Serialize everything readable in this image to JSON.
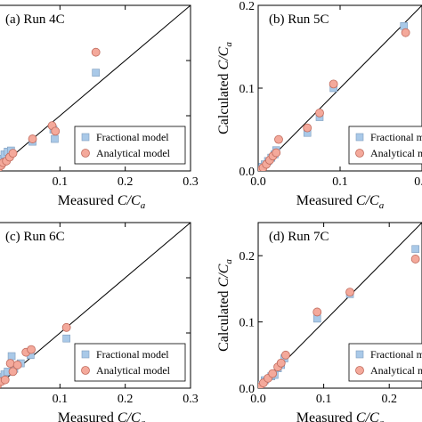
{
  "chart_data": [
    {
      "type": "scatter",
      "panel_label": "(a) Run 4C",
      "xlabel_prefix": "Measured ",
      "xlabel_var": "C/C",
      "xlabel_sub": "a",
      "ylabel_prefix": "",
      "ylabel_var": "",
      "ylabel_sub": "",
      "xlim": [
        0,
        0.3
      ],
      "ylim": [
        0,
        0.3
      ],
      "x_ticks": [
        "0",
        "0.1",
        "0.2",
        "0.3"
      ],
      "y_ticks": [],
      "legend_position": "bottom-right",
      "series": [
        {
          "name": "Fractional model",
          "marker": "square",
          "color": "#a9c9e8",
          "points": [
            [
              0.0,
              0.005
            ],
            [
              0.005,
              0.012
            ],
            [
              0.01,
              0.022
            ],
            [
              0.015,
              0.03
            ],
            [
              0.02,
              0.035
            ],
            [
              0.025,
              0.037
            ],
            [
              0.058,
              0.053
            ],
            [
              0.09,
              0.075
            ],
            [
              0.092,
              0.058
            ],
            [
              0.155,
              0.178
            ]
          ]
        },
        {
          "name": "Analytical model",
          "marker": "circle",
          "color": "#f4a99b",
          "points": [
            [
              0.005,
              0.003
            ],
            [
              0.01,
              0.01
            ],
            [
              0.013,
              0.015
            ],
            [
              0.018,
              0.018
            ],
            [
              0.023,
              0.025
            ],
            [
              0.028,
              0.032
            ],
            [
              0.058,
              0.058
            ],
            [
              0.088,
              0.082
            ],
            [
              0.093,
              0.072
            ],
            [
              0.155,
              0.215
            ]
          ]
        }
      ]
    },
    {
      "type": "scatter",
      "panel_label": "(b) Run 5C",
      "xlabel_prefix": "Measured ",
      "xlabel_var": "C/C",
      "xlabel_sub": "a",
      "ylabel_prefix": "Calculated ",
      "ylabel_var": "C/C",
      "ylabel_sub": "a",
      "xlim": [
        0,
        0.2
      ],
      "ylim": [
        0,
        0.2
      ],
      "x_ticks": [
        "0.0",
        "0.1",
        "0.2"
      ],
      "y_ticks": [
        "0.0",
        "0.1",
        "0.2"
      ],
      "legend_position": "bottom-right",
      "series": [
        {
          "name": "Fractional model",
          "marker": "square",
          "color": "#a9c9e8",
          "points": [
            [
              0.002,
              0.002
            ],
            [
              0.005,
              0.005
            ],
            [
              0.008,
              0.008
            ],
            [
              0.012,
              0.012
            ],
            [
              0.016,
              0.016
            ],
            [
              0.02,
              0.02
            ],
            [
              0.022,
              0.025
            ],
            [
              0.06,
              0.046
            ],
            [
              0.075,
              0.065
            ],
            [
              0.092,
              0.1
            ],
            [
              0.178,
              0.175
            ]
          ]
        },
        {
          "name": "Analytical model",
          "marker": "circle",
          "color": "#f4a99b",
          "points": [
            [
              0.003,
              0.001
            ],
            [
              0.006,
              0.004
            ],
            [
              0.01,
              0.008
            ],
            [
              0.014,
              0.013
            ],
            [
              0.018,
              0.018
            ],
            [
              0.022,
              0.022
            ],
            [
              0.025,
              0.038
            ],
            [
              0.06,
              0.052
            ],
            [
              0.075,
              0.07
            ],
            [
              0.092,
              0.105
            ],
            [
              0.18,
              0.167
            ]
          ]
        }
      ]
    },
    {
      "type": "scatter",
      "panel_label": "(c) Run 6C",
      "xlabel_prefix": "Measured ",
      "xlabel_var": "C/C",
      "xlabel_sub": "a",
      "ylabel_prefix": "",
      "ylabel_var": "",
      "ylabel_sub": "",
      "xlim": [
        0,
        0.3
      ],
      "ylim": [
        0,
        0.3
      ],
      "x_ticks": [
        "0",
        "0.1",
        "0.2",
        "0.3"
      ],
      "y_ticks": [],
      "legend_position": "bottom-right",
      "series": [
        {
          "name": "Fractional model",
          "marker": "square",
          "color": "#a9c9e8",
          "points": [
            [
              0.002,
              0.01
            ],
            [
              0.008,
              0.02
            ],
            [
              0.015,
              0.025
            ],
            [
              0.02,
              0.03
            ],
            [
              0.026,
              0.058
            ],
            [
              0.03,
              0.035
            ],
            [
              0.04,
              0.045
            ],
            [
              0.055,
              0.06
            ],
            [
              0.11,
              0.09
            ]
          ]
        },
        {
          "name": "Analytical model",
          "marker": "circle",
          "color": "#f4a99b",
          "points": [
            [
              0.004,
              0.005
            ],
            [
              0.01,
              0.012
            ],
            [
              0.016,
              0.015
            ],
            [
              0.024,
              0.045
            ],
            [
              0.028,
              0.03
            ],
            [
              0.035,
              0.042
            ],
            [
              0.048,
              0.065
            ],
            [
              0.056,
              0.07
            ],
            [
              0.11,
              0.11
            ]
          ]
        }
      ]
    },
    {
      "type": "scatter",
      "panel_label": "(d) Run 7C",
      "xlabel_prefix": "Measured ",
      "xlabel_var": "C/C",
      "xlabel_sub": "a",
      "ylabel_prefix": "Calculated ",
      "ylabel_var": "C/C",
      "ylabel_sub": "a",
      "xlim": [
        0,
        0.25
      ],
      "ylim": [
        0,
        0.25
      ],
      "x_ticks": [
        "0.0",
        "0.1",
        "0.2"
      ],
      "y_ticks": [
        "0.0",
        "0.1",
        "0.2"
      ],
      "legend_position": "bottom-right",
      "series": [
        {
          "name": "Fractional model",
          "marker": "square",
          "color": "#a9c9e8",
          "points": [
            [
              0.003,
              0.005
            ],
            [
              0.01,
              0.012
            ],
            [
              0.02,
              0.018
            ],
            [
              0.025,
              0.02
            ],
            [
              0.03,
              0.03
            ],
            [
              0.035,
              0.035
            ],
            [
              0.04,
              0.045
            ],
            [
              0.09,
              0.105
            ],
            [
              0.14,
              0.142
            ],
            [
              0.24,
              0.21
            ]
          ]
        },
        {
          "name": "Analytical model",
          "marker": "circle",
          "color": "#f4a99b",
          "points": [
            [
              0.002,
              0.002
            ],
            [
              0.008,
              0.008
            ],
            [
              0.015,
              0.015
            ],
            [
              0.022,
              0.022
            ],
            [
              0.03,
              0.032
            ],
            [
              0.035,
              0.038
            ],
            [
              0.042,
              0.05
            ],
            [
              0.09,
              0.115
            ],
            [
              0.14,
              0.145
            ],
            [
              0.24,
              0.195
            ]
          ]
        }
      ]
    }
  ]
}
